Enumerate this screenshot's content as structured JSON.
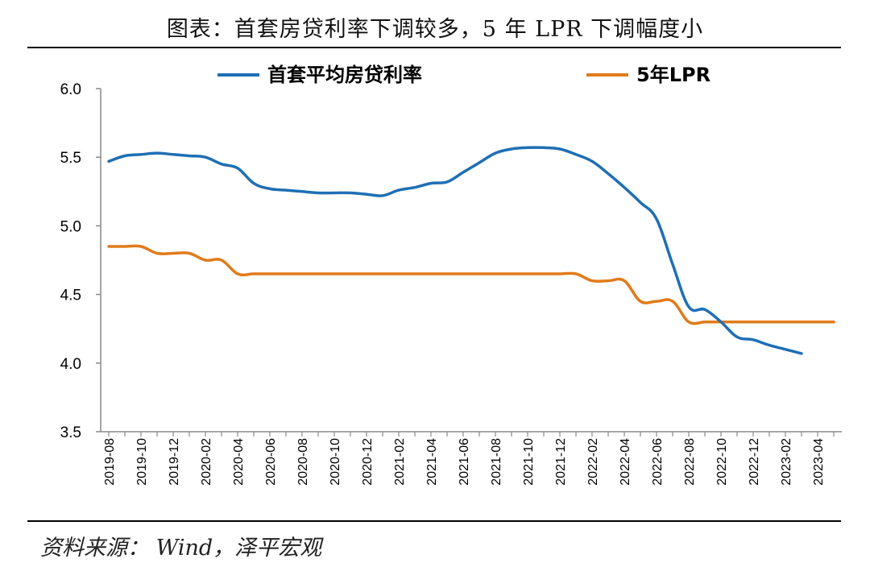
{
  "title": "图表：首套房贷利率下调较多，5 年 LPR 下调幅度小",
  "source": "资料来源：  Wind，泽平宏观",
  "chart_data": {
    "type": "line",
    "title": "图表：首套房贷利率下调较多，5 年 LPR 下调幅度小",
    "xlabel": "",
    "ylabel": "",
    "ylim": [
      3.5,
      6.0
    ],
    "yticks": [
      "6.0",
      "5.5",
      "5.0",
      "4.5",
      "4.0",
      "3.5"
    ],
    "x": [
      "2019-08",
      "2019-09",
      "2019-10",
      "2019-11",
      "2019-12",
      "2020-01",
      "2020-02",
      "2020-03",
      "2020-04",
      "2020-05",
      "2020-06",
      "2020-07",
      "2020-08",
      "2020-09",
      "2020-10",
      "2020-11",
      "2020-12",
      "2021-01",
      "2021-02",
      "2021-03",
      "2021-04",
      "2021-05",
      "2021-06",
      "2021-07",
      "2021-08",
      "2021-09",
      "2021-10",
      "2021-11",
      "2021-12",
      "2022-01",
      "2022-02",
      "2022-03",
      "2022-04",
      "2022-05",
      "2022-06",
      "2022-07",
      "2022-08",
      "2022-09",
      "2022-10",
      "2022-11",
      "2022-12",
      "2023-01",
      "2023-02",
      "2023-03",
      "2023-04",
      "2023-05"
    ],
    "xtick_labels": [
      "2019-08",
      "2019-10",
      "2019-12",
      "2020-02",
      "2020-04",
      "2020-06",
      "2020-08",
      "2020-10",
      "2020-12",
      "2021-02",
      "2021-04",
      "2021-06",
      "2021-08",
      "2021-10",
      "2021-12",
      "2022-02",
      "2022-04",
      "2022-06",
      "2022-08",
      "2022-10",
      "2022-12",
      "2023-02",
      "2023-04"
    ],
    "legend_position": "top",
    "series": [
      {
        "name": "首套平均房贷利率",
        "color": "#1F6FB4",
        "values": [
          5.47,
          5.51,
          5.52,
          5.53,
          5.52,
          5.51,
          5.5,
          5.45,
          5.42,
          5.31,
          5.27,
          5.26,
          5.25,
          5.24,
          5.24,
          5.24,
          5.23,
          5.22,
          5.26,
          5.28,
          5.31,
          5.32,
          5.39,
          5.46,
          5.53,
          5.56,
          5.57,
          5.57,
          5.56,
          5.52,
          5.47,
          5.38,
          5.28,
          5.17,
          5.05,
          4.72,
          4.41,
          4.39,
          4.3,
          4.19,
          4.17,
          4.13,
          4.1,
          4.07,
          null,
          null
        ]
      },
      {
        "name": "5年LPR",
        "color": "#E07B1A",
        "values": [
          4.85,
          4.85,
          4.85,
          4.8,
          4.8,
          4.8,
          4.75,
          4.75,
          4.65,
          4.65,
          4.65,
          4.65,
          4.65,
          4.65,
          4.65,
          4.65,
          4.65,
          4.65,
          4.65,
          4.65,
          4.65,
          4.65,
          4.65,
          4.65,
          4.65,
          4.65,
          4.65,
          4.65,
          4.65,
          4.65,
          4.6,
          4.6,
          4.6,
          4.45,
          4.45,
          4.45,
          4.3,
          4.3,
          4.3,
          4.3,
          4.3,
          4.3,
          4.3,
          4.3,
          4.3,
          4.3
        ]
      }
    ]
  }
}
